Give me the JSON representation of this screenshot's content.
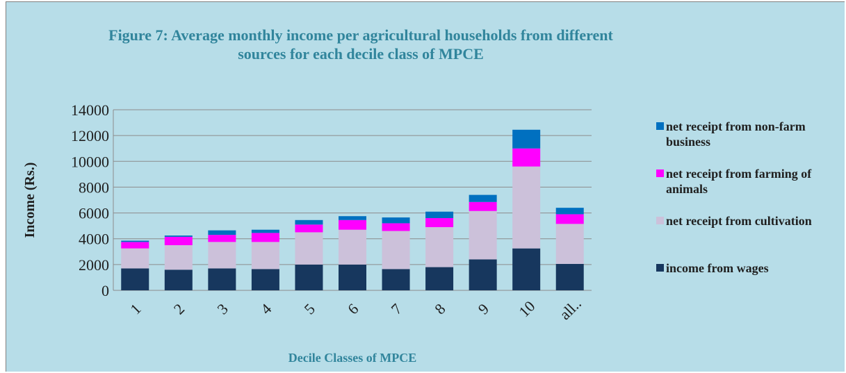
{
  "chart_data": {
    "type": "stacked_bar",
    "title": "Figure 7: Average monthly income per agricultural households from different sources for each decile class of MPCE",
    "y_label": "Income (Rs.)",
    "x_label": "Decile Classes of MPCE",
    "categories": [
      "1",
      "2",
      "3",
      "4",
      "5",
      "6",
      "7",
      "8",
      "9",
      "10",
      "all.."
    ],
    "series": [
      {
        "name": "income from wages",
        "color": "#17375e",
        "values": [
          1700,
          1600,
          1700,
          1650,
          2000,
          2000,
          1650,
          1800,
          2400,
          3250,
          2050
        ]
      },
      {
        "name": "net receipt from cultivation",
        "color": "#ccc1da",
        "values": [
          1550,
          1900,
          2050,
          2100,
          2500,
          2700,
          2950,
          3100,
          3750,
          6350,
          3100
        ]
      },
      {
        "name": "net receipt from farming of animals",
        "color": "#ff00ff",
        "values": [
          500,
          650,
          550,
          700,
          600,
          750,
          600,
          700,
          700,
          1400,
          750
        ]
      },
      {
        "name": "net receipt from non-farm business",
        "color": "#0070c0",
        "values": [
          100,
          100,
          350,
          250,
          350,
          300,
          450,
          500,
          550,
          1450,
          500
        ]
      }
    ],
    "ylim": [
      0,
      14000
    ],
    "yticks": [
      0,
      2000,
      4000,
      6000,
      8000,
      10000,
      12000,
      14000
    ],
    "grid": true
  }
}
